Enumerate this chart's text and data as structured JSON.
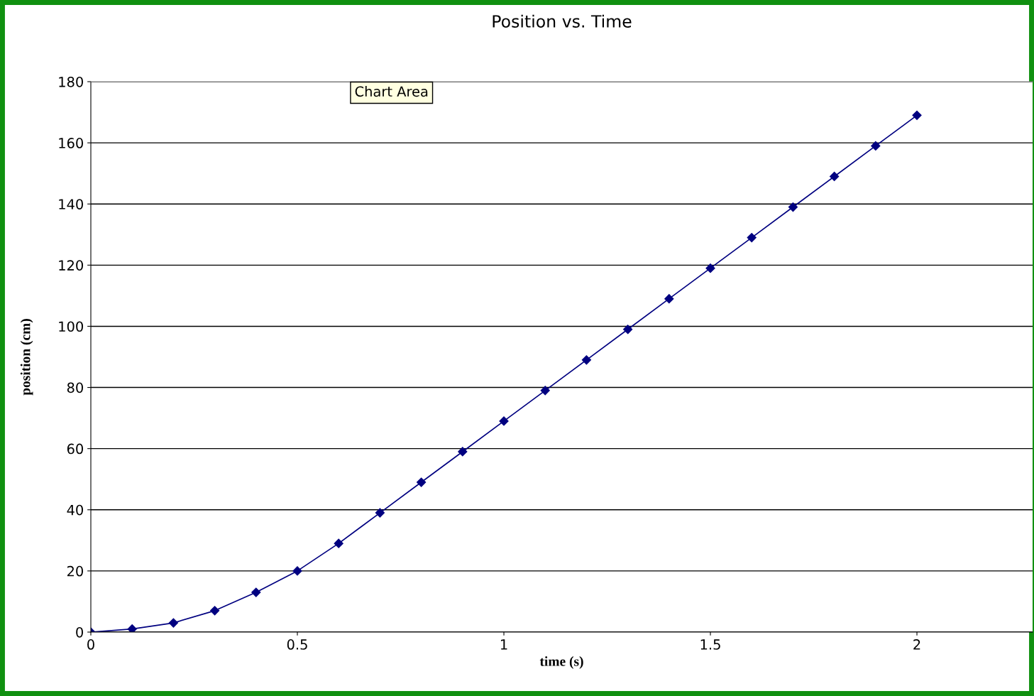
{
  "chart_data": {
    "type": "line",
    "title": "Position vs. Time",
    "xlabel": "time (s)",
    "ylabel": "position (cm)",
    "x": [
      0,
      0.1,
      0.2,
      0.3,
      0.4,
      0.5,
      0.6,
      0.7,
      0.8,
      0.9,
      1.0,
      1.1,
      1.2,
      1.3,
      1.4,
      1.5,
      1.6,
      1.7,
      1.8,
      1.9,
      2.0
    ],
    "series": [
      {
        "color": "#000080",
        "values": [
          0,
          1,
          3,
          7,
          13,
          20,
          29,
          39,
          49,
          59,
          69,
          79,
          89,
          99,
          109,
          119,
          129,
          139,
          149,
          159,
          169
        ]
      }
    ],
    "xlim": [
      0,
      2.28
    ],
    "xticks": [
      0,
      0.5,
      1,
      1.5,
      2
    ],
    "ylim": [
      0,
      180
    ],
    "yticks": [
      0,
      20,
      40,
      60,
      80,
      100,
      120,
      140,
      160,
      180
    ],
    "grid": "y",
    "marker": "diamond",
    "line_style": "solid",
    "legend": false,
    "annotations": [
      "Chart Area"
    ]
  }
}
